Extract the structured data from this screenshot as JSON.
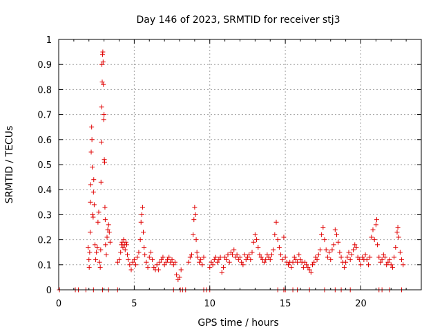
{
  "chart_data": {
    "type": "scatter",
    "title": "Day 146 of 2023, SRMTID for receiver stj3",
    "xlabel": "GPS time / hours",
    "ylabel": "SRMTID / TECUs",
    "xlim": [
      0,
      24
    ],
    "ylim": [
      0,
      1
    ],
    "xticks": [
      0,
      5,
      10,
      15,
      20
    ],
    "yticks": [
      0,
      0.1,
      0.2,
      0.3,
      0.4,
      0.5,
      0.6,
      0.7,
      0.8,
      0.9,
      1
    ],
    "ytick_labels": [
      "0",
      "0.1",
      "0.2",
      "0.3",
      "0.4",
      "0.5",
      "0.6",
      "0.7",
      "0.8",
      "0.9",
      "1"
    ],
    "grid": true,
    "marker": "+",
    "color": "#e00000",
    "series": [
      {
        "name": "SRMTID",
        "points": [
          [
            0.05,
            0.0
          ],
          [
            1.1,
            0.0
          ],
          [
            1.3,
            0.0
          ],
          [
            1.8,
            0.0
          ],
          [
            2.3,
            0.0
          ],
          [
            2.9,
            0.0
          ],
          [
            3.3,
            0.0
          ],
          [
            3.9,
            0.0
          ],
          [
            7.6,
            0.0
          ],
          [
            8.05,
            0.0
          ],
          [
            8.2,
            0.0
          ],
          [
            8.4,
            0.0
          ],
          [
            9.6,
            0.0
          ],
          [
            9.8,
            0.0
          ],
          [
            10.0,
            0.0
          ],
          [
            14.5,
            0.0
          ],
          [
            14.9,
            0.0
          ],
          [
            15.0,
            0.0
          ],
          [
            15.5,
            0.0
          ],
          [
            15.8,
            0.0
          ],
          [
            16.6,
            0.0
          ],
          [
            17.6,
            0.0
          ],
          [
            18.3,
            0.0
          ],
          [
            18.7,
            0.0
          ],
          [
            19.3,
            0.0
          ],
          [
            21.2,
            0.0
          ],
          [
            21.4,
            0.0
          ],
          [
            21.9,
            0.0
          ],
          [
            22.7,
            0.0
          ],
          [
            1.95,
            0.17
          ],
          [
            2.0,
            0.12
          ],
          [
            2.02,
            0.09
          ],
          [
            2.05,
            0.15
          ],
          [
            2.08,
            0.23
          ],
          [
            2.1,
            0.35
          ],
          [
            2.12,
            0.42
          ],
          [
            2.15,
            0.55
          ],
          [
            2.18,
            0.65
          ],
          [
            2.2,
            0.6
          ],
          [
            2.22,
            0.49
          ],
          [
            2.25,
            0.3
          ],
          [
            2.28,
            0.29
          ],
          [
            2.3,
            0.39
          ],
          [
            2.32,
            0.44
          ],
          [
            2.35,
            0.34
          ],
          [
            2.4,
            0.18
          ],
          [
            2.45,
            0.12
          ],
          [
            2.5,
            0.15
          ],
          [
            2.55,
            0.17
          ],
          [
            2.6,
            0.27
          ],
          [
            2.65,
            0.31
          ],
          [
            2.7,
            0.11
          ],
          [
            2.75,
            0.09
          ],
          [
            2.78,
            0.16
          ],
          [
            2.8,
            0.43
          ],
          [
            2.82,
            0.59
          ],
          [
            2.84,
            0.73
          ],
          [
            2.86,
            0.9
          ],
          [
            2.88,
            0.83
          ],
          [
            2.9,
            0.94
          ],
          [
            2.92,
            0.95
          ],
          [
            2.94,
            0.91
          ],
          [
            2.96,
            0.82
          ],
          [
            2.98,
            0.68
          ],
          [
            3.0,
            0.7
          ],
          [
            3.02,
            0.52
          ],
          [
            3.04,
            0.51
          ],
          [
            3.06,
            0.33
          ],
          [
            3.08,
            0.28
          ],
          [
            3.1,
            0.18
          ],
          [
            3.15,
            0.14
          ],
          [
            3.2,
            0.21
          ],
          [
            3.25,
            0.24
          ],
          [
            3.3,
            0.26
          ],
          [
            3.35,
            0.23
          ],
          [
            3.4,
            0.19
          ],
          [
            3.9,
            0.11
          ],
          [
            4.0,
            0.12
          ],
          [
            4.1,
            0.15
          ],
          [
            4.15,
            0.18
          ],
          [
            4.2,
            0.19
          ],
          [
            4.25,
            0.17
          ],
          [
            4.3,
            0.2
          ],
          [
            4.35,
            0.18
          ],
          [
            4.4,
            0.16
          ],
          [
            4.45,
            0.19
          ],
          [
            4.5,
            0.18
          ],
          [
            4.55,
            0.14
          ],
          [
            4.6,
            0.12
          ],
          [
            4.7,
            0.1
          ],
          [
            4.8,
            0.08
          ],
          [
            4.9,
            0.11
          ],
          [
            5.0,
            0.12
          ],
          [
            5.1,
            0.1
          ],
          [
            5.2,
            0.13
          ],
          [
            5.3,
            0.15
          ],
          [
            5.4,
            0.2
          ],
          [
            5.45,
            0.27
          ],
          [
            5.5,
            0.3
          ],
          [
            5.55,
            0.33
          ],
          [
            5.6,
            0.23
          ],
          [
            5.65,
            0.17
          ],
          [
            5.7,
            0.14
          ],
          [
            5.8,
            0.11
          ],
          [
            5.9,
            0.09
          ],
          [
            6.0,
            0.13
          ],
          [
            6.1,
            0.15
          ],
          [
            6.2,
            0.12
          ],
          [
            6.3,
            0.09
          ],
          [
            6.4,
            0.08
          ],
          [
            6.5,
            0.1
          ],
          [
            6.6,
            0.08
          ],
          [
            6.7,
            0.11
          ],
          [
            6.8,
            0.12
          ],
          [
            6.9,
            0.13
          ],
          [
            7.0,
            0.1
          ],
          [
            7.1,
            0.11
          ],
          [
            7.2,
            0.12
          ],
          [
            7.3,
            0.13
          ],
          [
            7.4,
            0.11
          ],
          [
            7.5,
            0.12
          ],
          [
            7.6,
            0.1
          ],
          [
            7.7,
            0.11
          ],
          [
            7.8,
            0.06
          ],
          [
            7.9,
            0.04
          ],
          [
            8.0,
            0.05
          ],
          [
            8.1,
            0.08
          ],
          [
            8.6,
            0.11
          ],
          [
            8.7,
            0.13
          ],
          [
            8.8,
            0.14
          ],
          [
            8.9,
            0.22
          ],
          [
            8.95,
            0.28
          ],
          [
            9.0,
            0.33
          ],
          [
            9.05,
            0.3
          ],
          [
            9.1,
            0.2
          ],
          [
            9.15,
            0.15
          ],
          [
            9.2,
            0.13
          ],
          [
            9.3,
            0.11
          ],
          [
            9.4,
            0.12
          ],
          [
            9.5,
            0.1
          ],
          [
            9.6,
            0.13
          ],
          [
            10.0,
            0.09
          ],
          [
            10.1,
            0.11
          ],
          [
            10.2,
            0.1
          ],
          [
            10.3,
            0.12
          ],
          [
            10.4,
            0.13
          ],
          [
            10.5,
            0.11
          ],
          [
            10.6,
            0.12
          ],
          [
            10.7,
            0.13
          ],
          [
            10.8,
            0.07
          ],
          [
            10.9,
            0.09
          ],
          [
            11.0,
            0.13
          ],
          [
            11.1,
            0.12
          ],
          [
            11.2,
            0.14
          ],
          [
            11.3,
            0.11
          ],
          [
            11.4,
            0.15
          ],
          [
            11.5,
            0.14
          ],
          [
            11.6,
            0.16
          ],
          [
            11.7,
            0.13
          ],
          [
            11.8,
            0.14
          ],
          [
            11.9,
            0.12
          ],
          [
            12.0,
            0.13
          ],
          [
            12.1,
            0.11
          ],
          [
            12.2,
            0.1
          ],
          [
            12.3,
            0.14
          ],
          [
            12.4,
            0.12
          ],
          [
            12.5,
            0.13
          ],
          [
            12.6,
            0.14
          ],
          [
            12.7,
            0.12
          ],
          [
            12.8,
            0.15
          ],
          [
            12.9,
            0.19
          ],
          [
            13.0,
            0.22
          ],
          [
            13.1,
            0.2
          ],
          [
            13.2,
            0.17
          ],
          [
            13.3,
            0.14
          ],
          [
            13.4,
            0.13
          ],
          [
            13.5,
            0.12
          ],
          [
            13.6,
            0.11
          ],
          [
            13.7,
            0.12
          ],
          [
            13.8,
            0.14
          ],
          [
            13.9,
            0.13
          ],
          [
            14.0,
            0.12
          ],
          [
            14.1,
            0.14
          ],
          [
            14.2,
            0.16
          ],
          [
            14.3,
            0.22
          ],
          [
            14.4,
            0.27
          ],
          [
            14.5,
            0.2
          ],
          [
            14.6,
            0.17
          ],
          [
            14.7,
            0.14
          ],
          [
            14.8,
            0.12
          ],
          [
            14.9,
            0.21
          ],
          [
            15.0,
            0.13
          ],
          [
            15.1,
            0.11
          ],
          [
            15.2,
            0.1
          ],
          [
            15.3,
            0.11
          ],
          [
            15.4,
            0.09
          ],
          [
            15.5,
            0.11
          ],
          [
            15.6,
            0.13
          ],
          [
            15.7,
            0.12
          ],
          [
            15.8,
            0.11
          ],
          [
            15.9,
            0.14
          ],
          [
            16.0,
            0.12
          ],
          [
            16.1,
            0.11
          ],
          [
            16.2,
            0.09
          ],
          [
            16.3,
            0.11
          ],
          [
            16.4,
            0.1
          ],
          [
            16.5,
            0.09
          ],
          [
            16.6,
            0.08
          ],
          [
            16.7,
            0.07
          ],
          [
            16.8,
            0.1
          ],
          [
            16.9,
            0.11
          ],
          [
            17.0,
            0.13
          ],
          [
            17.1,
            0.12
          ],
          [
            17.2,
            0.14
          ],
          [
            17.3,
            0.16
          ],
          [
            17.4,
            0.22
          ],
          [
            17.5,
            0.25
          ],
          [
            17.6,
            0.2
          ],
          [
            17.7,
            0.16
          ],
          [
            17.8,
            0.13
          ],
          [
            17.9,
            0.15
          ],
          [
            18.0,
            0.12
          ],
          [
            18.1,
            0.16
          ],
          [
            18.2,
            0.18
          ],
          [
            18.3,
            0.24
          ],
          [
            18.4,
            0.22
          ],
          [
            18.5,
            0.19
          ],
          [
            18.6,
            0.15
          ],
          [
            18.7,
            0.13
          ],
          [
            18.8,
            0.11
          ],
          [
            18.9,
            0.09
          ],
          [
            19.0,
            0.11
          ],
          [
            19.1,
            0.13
          ],
          [
            19.2,
            0.15
          ],
          [
            19.3,
            0.12
          ],
          [
            19.4,
            0.14
          ],
          [
            19.5,
            0.16
          ],
          [
            19.6,
            0.18
          ],
          [
            19.7,
            0.17
          ],
          [
            19.8,
            0.13
          ],
          [
            19.9,
            0.12
          ],
          [
            20.0,
            0.1
          ],
          [
            20.1,
            0.13
          ],
          [
            20.2,
            0.12
          ],
          [
            20.3,
            0.14
          ],
          [
            20.4,
            0.12
          ],
          [
            20.5,
            0.1
          ],
          [
            20.6,
            0.13
          ],
          [
            20.7,
            0.21
          ],
          [
            20.8,
            0.24
          ],
          [
            20.9,
            0.2
          ],
          [
            21.0,
            0.26
          ],
          [
            21.05,
            0.28
          ],
          [
            21.1,
            0.18
          ],
          [
            21.2,
            0.13
          ],
          [
            21.3,
            0.11
          ],
          [
            21.4,
            0.12
          ],
          [
            21.5,
            0.14
          ],
          [
            21.6,
            0.13
          ],
          [
            21.7,
            0.1
          ],
          [
            21.8,
            0.11
          ],
          [
            21.9,
            0.12
          ],
          [
            22.0,
            0.1
          ],
          [
            22.1,
            0.09
          ],
          [
            22.2,
            0.13
          ],
          [
            22.3,
            0.17
          ],
          [
            22.4,
            0.23
          ],
          [
            22.45,
            0.25
          ],
          [
            22.5,
            0.21
          ],
          [
            22.6,
            0.15
          ],
          [
            22.7,
            0.12
          ],
          [
            22.8,
            0.1
          ]
        ]
      }
    ]
  }
}
